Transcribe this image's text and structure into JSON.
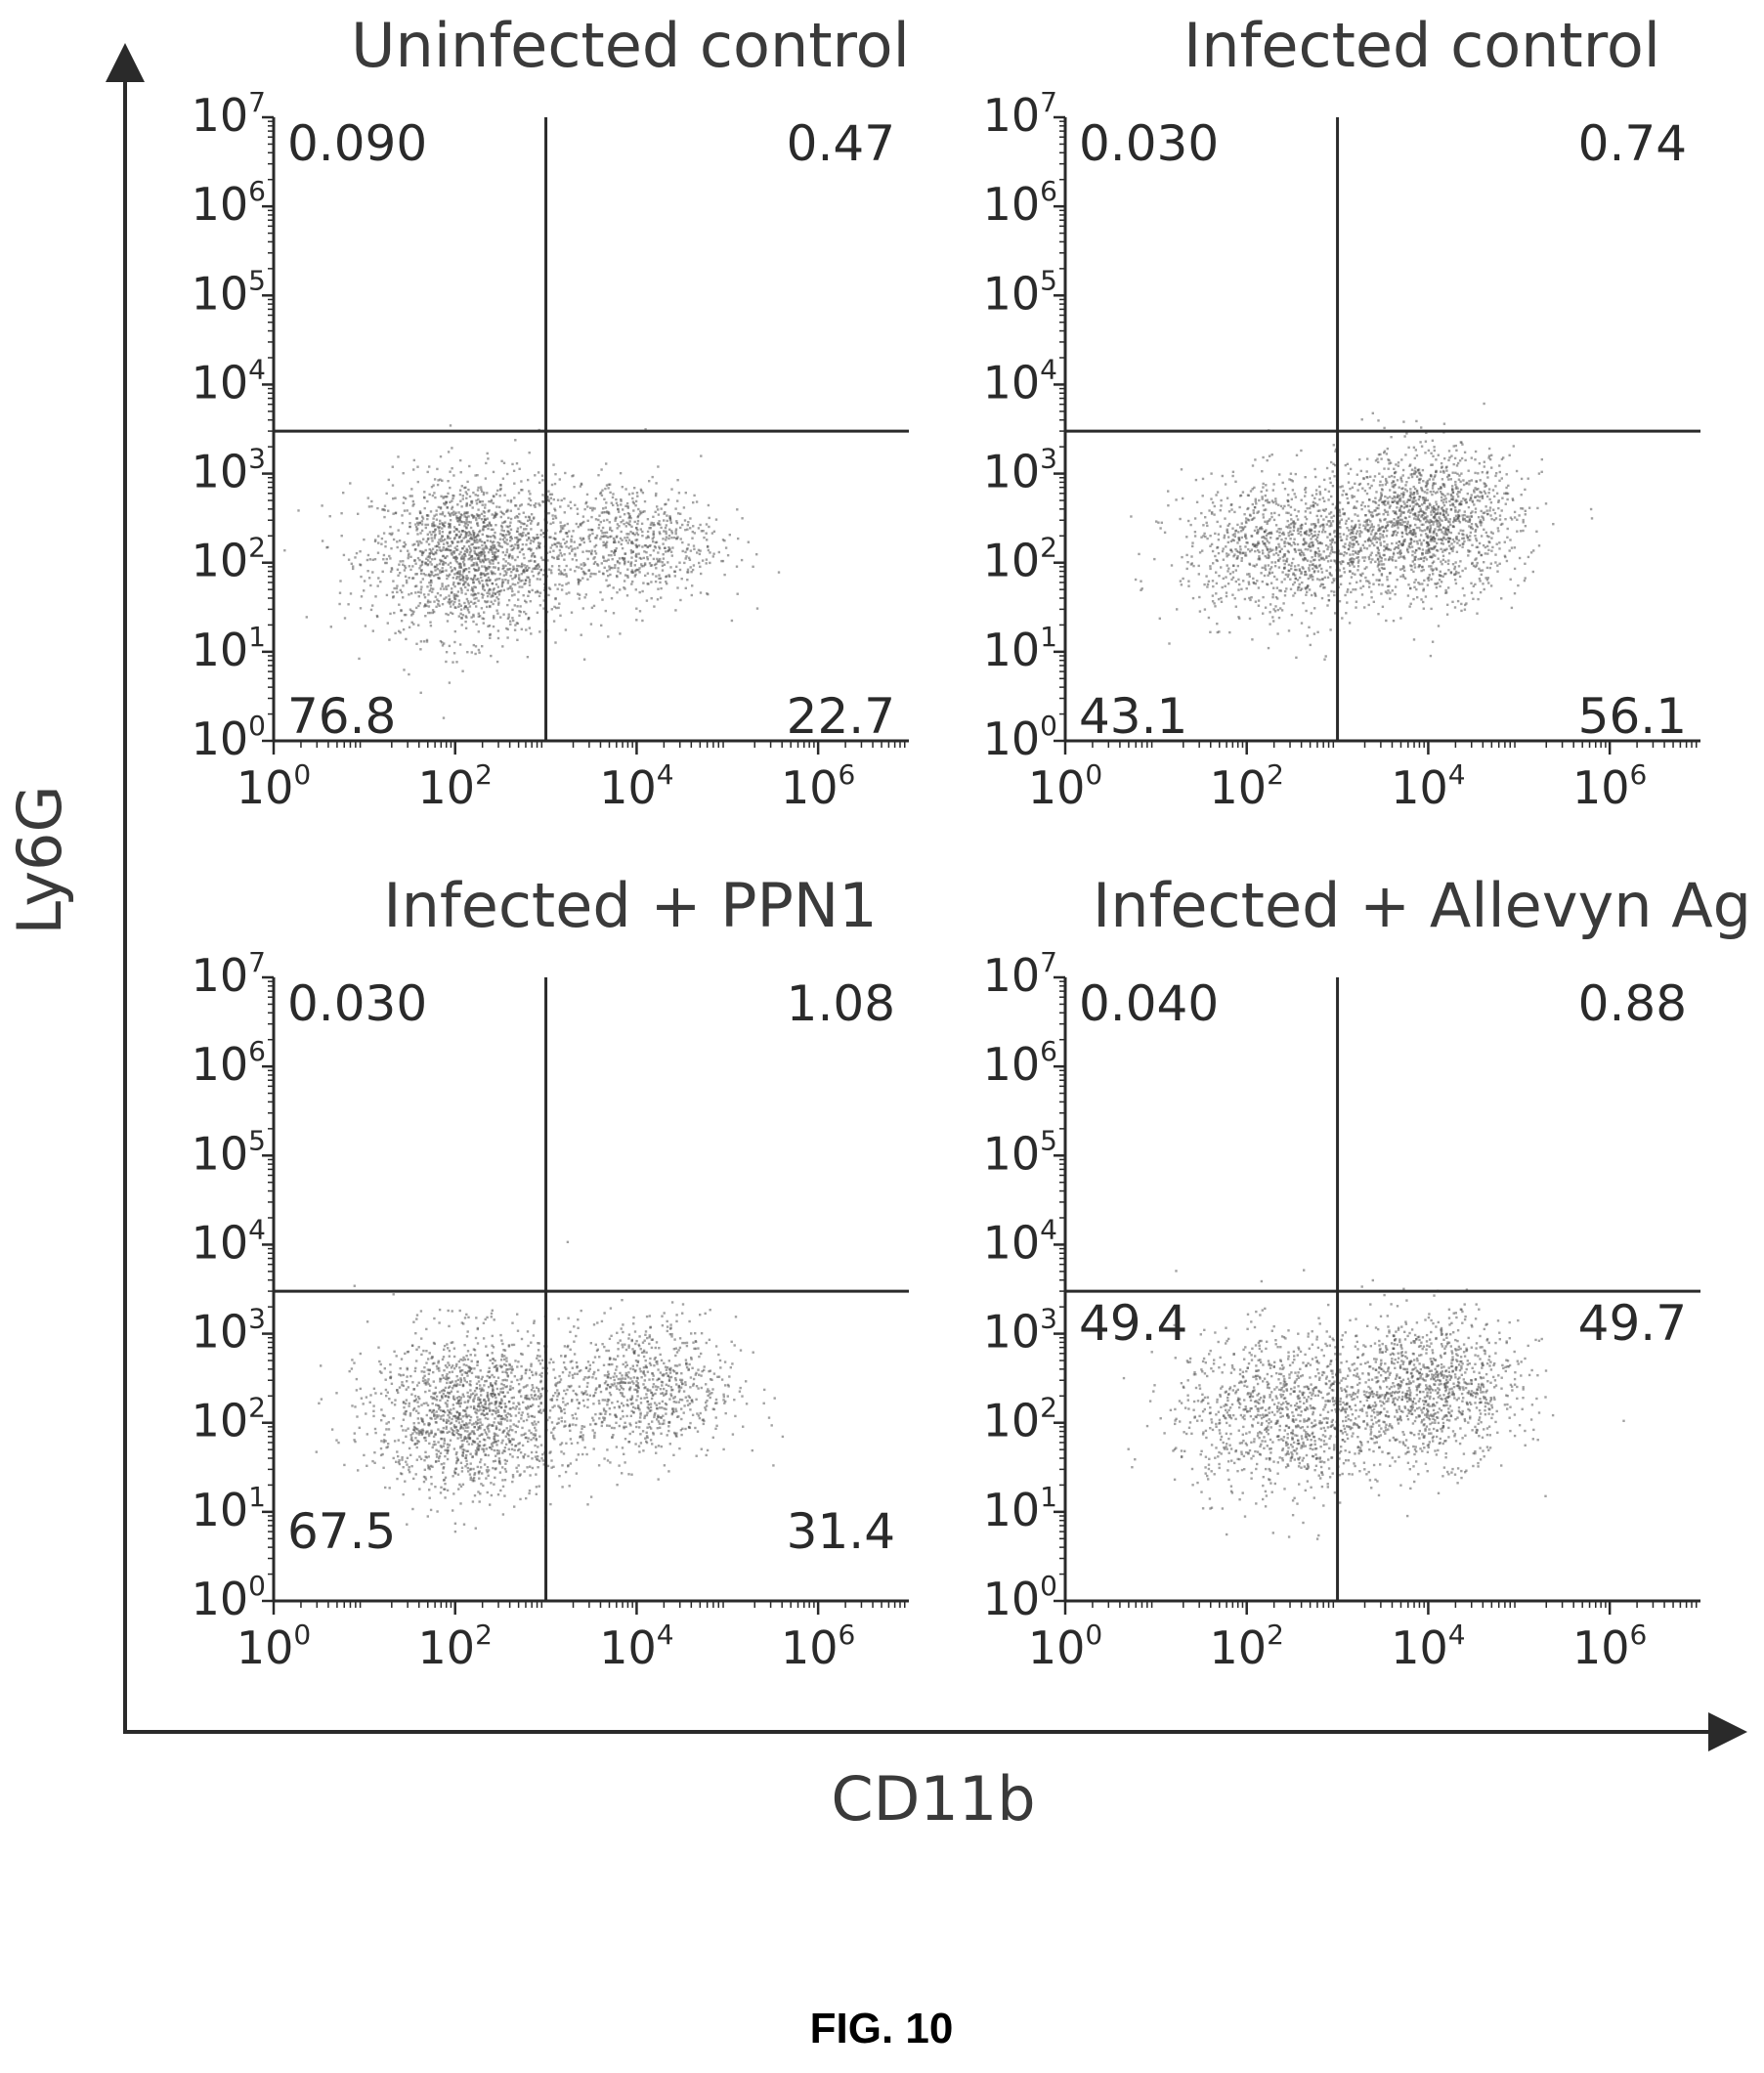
{
  "figure": {
    "caption": "FIG. 10",
    "x_axis_title": "CD11b",
    "y_axis_title": "Ly6G"
  },
  "chart_data": [
    {
      "type": "scatter",
      "title": "Uninfected control",
      "xlabel": "CD11b",
      "ylabel": "Ly6G",
      "xscale": "log",
      "yscale": "log",
      "xlim": [
        1,
        10000000
      ],
      "ylim": [
        1,
        10000000
      ],
      "xticks": [
        {
          "base": "10",
          "exp": "0"
        },
        {
          "base": "10",
          "exp": "2"
        },
        {
          "base": "10",
          "exp": "4"
        },
        {
          "base": "10",
          "exp": "6"
        }
      ],
      "yticks": [
        {
          "base": "10",
          "exp": "0"
        },
        {
          "base": "10",
          "exp": "1"
        },
        {
          "base": "10",
          "exp": "2"
        },
        {
          "base": "10",
          "exp": "3"
        },
        {
          "base": "10",
          "exp": "4"
        },
        {
          "base": "10",
          "exp": "5"
        },
        {
          "base": "10",
          "exp": "6"
        },
        {
          "base": "10",
          "exp": "7"
        }
      ],
      "gate": {
        "x": 1000,
        "y": 3000
      },
      "quadrants": {
        "upper_left": "0.090",
        "upper_right": "0.47",
        "lower_left": "76.8",
        "lower_right": "22.7"
      },
      "clusters": [
        {
          "x": 150,
          "y": 120,
          "n": 1700,
          "spread_x": 0.55,
          "spread_y": 0.45
        },
        {
          "x": 8000,
          "y": 180,
          "n": 700,
          "spread_x": 0.5,
          "spread_y": 0.35
        }
      ]
    },
    {
      "type": "scatter",
      "title": "Infected control",
      "xlabel": "CD11b",
      "ylabel": "Ly6G",
      "xscale": "log",
      "yscale": "log",
      "xlim": [
        1,
        10000000
      ],
      "ylim": [
        1,
        10000000
      ],
      "xticks": [
        {
          "base": "10",
          "exp": "0"
        },
        {
          "base": "10",
          "exp": "2"
        },
        {
          "base": "10",
          "exp": "4"
        },
        {
          "base": "10",
          "exp": "6"
        }
      ],
      "yticks": [
        {
          "base": "10",
          "exp": "0"
        },
        {
          "base": "10",
          "exp": "1"
        },
        {
          "base": "10",
          "exp": "2"
        },
        {
          "base": "10",
          "exp": "3"
        },
        {
          "base": "10",
          "exp": "4"
        },
        {
          "base": "10",
          "exp": "5"
        },
        {
          "base": "10",
          "exp": "6"
        },
        {
          "base": "10",
          "exp": "7"
        }
      ],
      "gate": {
        "x": 1000,
        "y": 3000
      },
      "quadrants": {
        "upper_left": "0.030",
        "upper_right": "0.74",
        "lower_left": "43.1",
        "lower_right": "56.1"
      },
      "clusters": [
        {
          "x": 300,
          "y": 150,
          "n": 1100,
          "spread_x": 0.6,
          "spread_y": 0.4
        },
        {
          "x": 10000,
          "y": 300,
          "n": 1400,
          "spread_x": 0.5,
          "spread_y": 0.4
        }
      ]
    },
    {
      "type": "scatter",
      "title": "Infected + PPN1",
      "xlabel": "CD11b",
      "ylabel": "Ly6G",
      "xscale": "log",
      "yscale": "log",
      "xlim": [
        1,
        10000000
      ],
      "ylim": [
        1,
        10000000
      ],
      "xticks": [
        {
          "base": "10",
          "exp": "0"
        },
        {
          "base": "10",
          "exp": "2"
        },
        {
          "base": "10",
          "exp": "4"
        },
        {
          "base": "10",
          "exp": "6"
        }
      ],
      "yticks": [
        {
          "base": "10",
          "exp": "0"
        },
        {
          "base": "10",
          "exp": "1"
        },
        {
          "base": "10",
          "exp": "2"
        },
        {
          "base": "10",
          "exp": "3"
        },
        {
          "base": "10",
          "exp": "4"
        },
        {
          "base": "10",
          "exp": "5"
        },
        {
          "base": "10",
          "exp": "6"
        },
        {
          "base": "10",
          "exp": "7"
        }
      ],
      "gate": {
        "x": 1000,
        "y": 3000
      },
      "quadrants": {
        "upper_left": "0.030",
        "upper_right": "1.08",
        "lower_left": "67.5",
        "lower_right": "31.4"
      },
      "clusters": [
        {
          "x": 150,
          "y": 130,
          "n": 1500,
          "spread_x": 0.55,
          "spread_y": 0.45
        },
        {
          "x": 12000,
          "y": 250,
          "n": 800,
          "spread_x": 0.5,
          "spread_y": 0.4
        }
      ]
    },
    {
      "type": "scatter",
      "title": "Infected + Allevyn Ag",
      "xlabel": "CD11b",
      "ylabel": "Ly6G",
      "xscale": "log",
      "yscale": "log",
      "xlim": [
        1,
        10000000
      ],
      "ylim": [
        1,
        10000000
      ],
      "xticks": [
        {
          "base": "10",
          "exp": "0"
        },
        {
          "base": "10",
          "exp": "2"
        },
        {
          "base": "10",
          "exp": "4"
        },
        {
          "base": "10",
          "exp": "6"
        }
      ],
      "yticks": [
        {
          "base": "10",
          "exp": "0"
        },
        {
          "base": "10",
          "exp": "1"
        },
        {
          "base": "10",
          "exp": "2"
        },
        {
          "base": "10",
          "exp": "3"
        },
        {
          "base": "10",
          "exp": "4"
        },
        {
          "base": "10",
          "exp": "5"
        },
        {
          "base": "10",
          "exp": "6"
        },
        {
          "base": "10",
          "exp": "7"
        }
      ],
      "gate": {
        "x": 1000,
        "y": 3000
      },
      "quadrants": {
        "upper_left": "0.040",
        "upper_right": "0.88",
        "lower_left": "49.4",
        "lower_right": "49.7"
      },
      "clusters": [
        {
          "x": 250,
          "y": 130,
          "n": 1100,
          "spread_x": 0.6,
          "spread_y": 0.45
        },
        {
          "x": 10000,
          "y": 250,
          "n": 1100,
          "spread_x": 0.5,
          "spread_y": 0.4
        }
      ]
    }
  ]
}
